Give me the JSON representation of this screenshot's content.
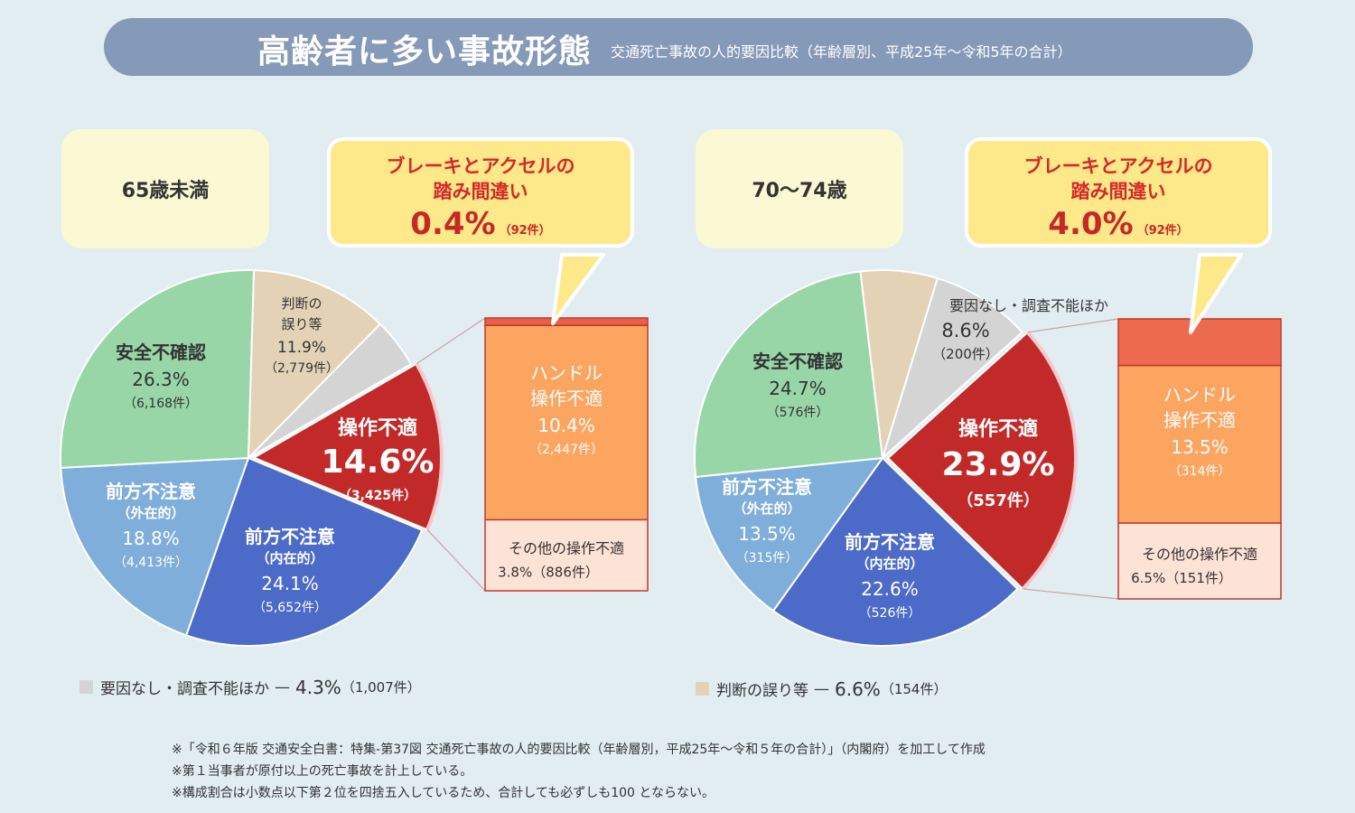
{
  "header": {
    "title": "高齢者に多い事故形態",
    "subtitle": "交通死亡事故の人的要因比較（年齢層別、平成25年〜令和5年の合計）"
  },
  "chart_data": [
    {
      "type": "pie",
      "group": "65歳未満",
      "slices": [
        {
          "name": "操作不適",
          "pct": 14.6,
          "pct_label": "14.6%",
          "count": "（3,425件）",
          "color": "#c22a2a"
        },
        {
          "name": "前方不注意",
          "sub": "（内在的）",
          "pct": 24.1,
          "pct_label": "24.1%",
          "count": "（5,652件）",
          "color": "#4c6bc8"
        },
        {
          "name": "前方不注意",
          "sub": "（外在的）",
          "pct": 18.8,
          "pct_label": "18.8%",
          "count": "（4,413件）",
          "color": "#7faedb"
        },
        {
          "name": "安全不確認",
          "pct": 26.3,
          "pct_label": "26.3%",
          "count": "（6,168件）",
          "color": "#98d6a8"
        },
        {
          "name": "判断の誤り等",
          "pct": 11.9,
          "pct_label": "11.9%",
          "count": "（2,779件）",
          "color": "#e3d2b6"
        },
        {
          "name": "要因なし・調査不能ほか",
          "pct": 4.3,
          "color": "#d4d4d4"
        }
      ],
      "breakdown": [
        {
          "name": "ブレーキとアクセルの踏み間違い",
          "pct": 0.4,
          "color": "#e8604a"
        },
        {
          "name": "ハンドル操作不適",
          "pct_label": "10.4%",
          "count": "（2,447件）",
          "pct": 10.4,
          "color": "#fba561"
        },
        {
          "name": "その他の操作不適",
          "pct_label": "3.8%",
          "count": "（886件）",
          "pct": 3.8,
          "color": "#fde2d6"
        }
      ],
      "callout": {
        "value": "0.4%",
        "count": "（92件）"
      },
      "legend_note": {
        "label": "要因なし・調査不能ほか",
        "value": "4.3%",
        "count": "（1,007件）"
      }
    },
    {
      "type": "pie",
      "group": "70〜74歳",
      "slices": [
        {
          "name": "操作不適",
          "pct": 23.9,
          "pct_label": "23.9%",
          "count": "（557件）",
          "color": "#c22a2a"
        },
        {
          "name": "前方不注意",
          "sub": "（内在的）",
          "pct": 22.6,
          "pct_label": "22.6%",
          "count": "（526件）",
          "color": "#4c6bc8"
        },
        {
          "name": "前方不注意",
          "sub": "（外在的）",
          "pct": 13.5,
          "pct_label": "13.5%",
          "count": "（315件）",
          "color": "#7faedb"
        },
        {
          "name": "安全不確認",
          "pct": 24.7,
          "pct_label": "24.7%",
          "count": "（576件）",
          "color": "#98d6a8"
        },
        {
          "name": "判断の誤り等",
          "pct": 6.6,
          "color": "#e3d2b6"
        },
        {
          "name": "要因なし・調査不能ほか",
          "pct": 8.6,
          "pct_label": "8.6%",
          "count": "（200件）",
          "color": "#d4d4d4"
        }
      ],
      "breakdown": [
        {
          "name": "ブレーキとアクセルの踏み間違い",
          "pct": 4.0,
          "color": "#ee6a4e"
        },
        {
          "name": "ハンドル操作不適",
          "pct_label": "13.5%",
          "count": "（314件）",
          "pct": 13.5,
          "color": "#fba561"
        },
        {
          "name": "その他の操作不適",
          "pct_label": "6.5%",
          "count": "（151件）",
          "pct": 6.5,
          "color": "#fde2d6"
        }
      ],
      "callout": {
        "value": "4.0%",
        "count": "（92件）"
      },
      "legend_note": {
        "label": "判断の誤り等",
        "value": "6.6%",
        "count": "（154件）"
      }
    }
  ],
  "callout_title": "ブレーキとアクセルの\n踏み間違い",
  "breakdown_labels": {
    "handle_line1": "ハンドル",
    "handle_line2": "操作不適",
    "other": "その他の操作不適"
  },
  "label_lines": {
    "judgement_1": "判断の",
    "judgement_2": "誤り等",
    "none_label": "要因なし・調査不能ほか"
  },
  "dash": "—",
  "notes": [
    "※「令和６年版 交通安全白書：特集-第37図 交通死亡事故の人的要因比較（年齢層別，平成25年〜令和５年の合計）」（内閣府）を加工して作成",
    "※第１当事者が原付以上の死亡事故を計上している。",
    "※構成割合は小数点以下第２位を四捨五入しているため、合計しても必ずしも100 とならない。"
  ],
  "colors": {
    "background": "#e2edf2",
    "title_bar": "#8599b8",
    "bubble": "#fde88a",
    "accent_red": "#c62828"
  }
}
